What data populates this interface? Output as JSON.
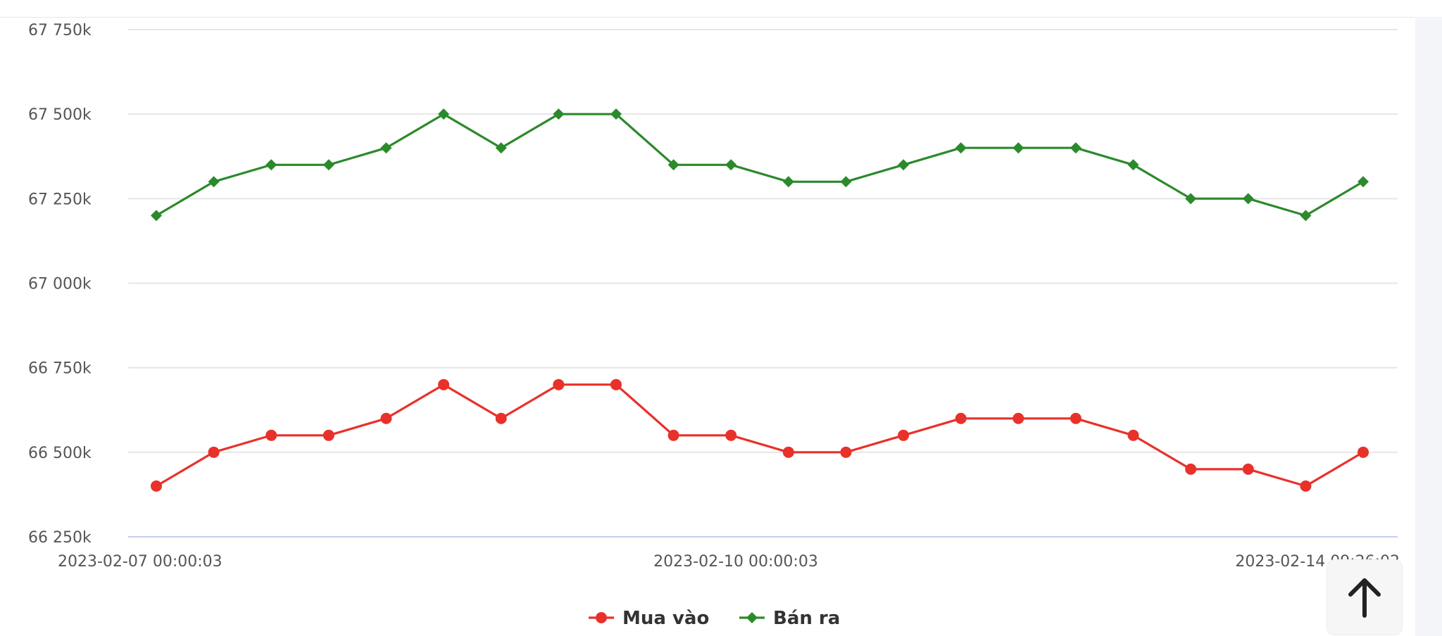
{
  "chart_data": {
    "type": "line",
    "title": "",
    "xlabel": "",
    "ylabel": "",
    "ylim": [
      66250,
      67750
    ],
    "y_ticks": [
      {
        "value": 66250,
        "label": "66 250k"
      },
      {
        "value": 66500,
        "label": "66 500k"
      },
      {
        "value": 66750,
        "label": "66 750k"
      },
      {
        "value": 67000,
        "label": "67 000k"
      },
      {
        "value": 67250,
        "label": "67 250k"
      },
      {
        "value": 67500,
        "label": "67 500k"
      },
      {
        "value": 67750,
        "label": "67 750k"
      }
    ],
    "x_tick_labels": [
      {
        "index": 0,
        "label": "2023-02-07 00:00:03"
      },
      {
        "index": 10,
        "label": "2023-02-10 00:00:03"
      },
      {
        "index": 21,
        "label": "2023-02-14 09:26:02"
      }
    ],
    "series": [
      {
        "name": "Mua vào",
        "color": "#e8312a",
        "marker": "circle",
        "values": [
          66400,
          66500,
          66550,
          66550,
          66600,
          66700,
          66600,
          66700,
          66700,
          66550,
          66550,
          66500,
          66500,
          66550,
          66600,
          66600,
          66600,
          66550,
          66450,
          66450,
          66400,
          66500
        ]
      },
      {
        "name": "Bán ra",
        "color": "#2b8a2b",
        "marker": "diamond",
        "values": [
          67200,
          67300,
          67350,
          67350,
          67400,
          67500,
          67400,
          67500,
          67500,
          67350,
          67350,
          67300,
          67300,
          67350,
          67400,
          67400,
          67400,
          67350,
          67250,
          67250,
          67200,
          67300
        ]
      }
    ],
    "legend_position": "bottom-center",
    "grid": true
  },
  "scroll_top": {
    "icon": "arrow-up-icon"
  }
}
